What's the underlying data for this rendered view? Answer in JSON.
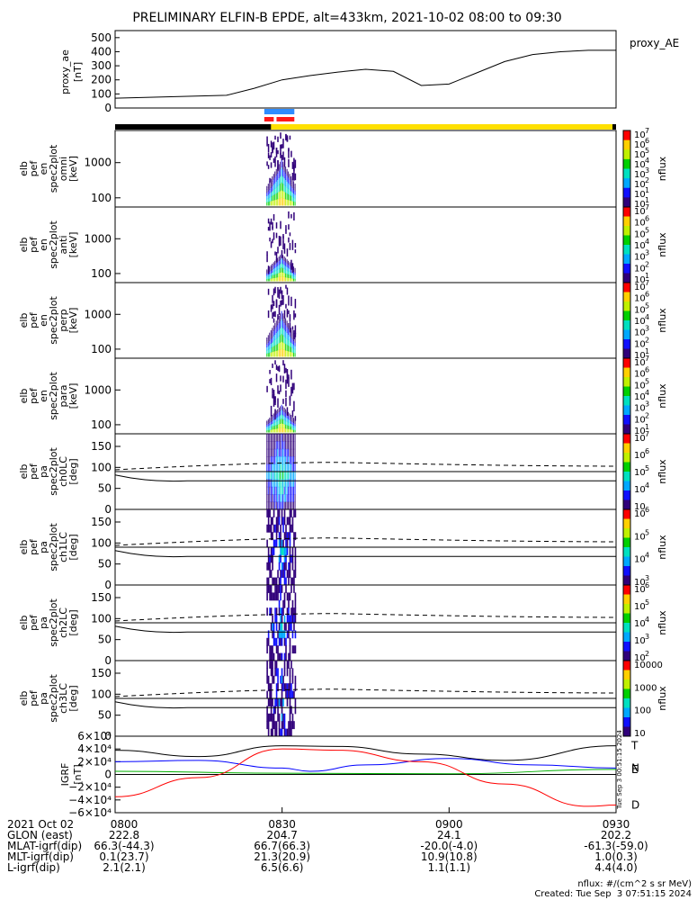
{
  "title": "PRELIMINARY ELFIN-B EPDE, alt=433km, 2021-10-02 08:00 to 09:30",
  "time_axis": {
    "start": "08:00",
    "end": "09:30",
    "ticks": [
      "0800",
      "0830",
      "0900",
      "0930"
    ]
  },
  "colors": {
    "phase_black": "#000000",
    "phase_yellow": "#ffe000",
    "phase_blue": "#2f8cff",
    "phase_red": "#ff1a1a",
    "mag_N": "#0000ff",
    "mag_E": "#00b000",
    "mag_D": "#ff0000",
    "mag_T": "#000000"
  },
  "chart_data": [
    {
      "type": "line",
      "name": "proxy_ae",
      "ylabel": "proxy_ae\n[nT]",
      "legend": "proxy_AE",
      "ylim": [
        0,
        550
      ],
      "yticks": [
        "500",
        "400",
        "300",
        "200",
        "100",
        "0"
      ],
      "x_min": [
        0,
        10,
        20,
        25,
        30,
        35,
        40,
        45,
        50,
        55,
        60,
        65,
        70,
        75,
        80,
        85,
        90
      ],
      "y": [
        70,
        80,
        90,
        140,
        200,
        230,
        255,
        275,
        260,
        160,
        170,
        250,
        330,
        380,
        400,
        410,
        410
      ]
    },
    {
      "type": "heatmap",
      "name": "elb_pef_en_spec2plot_omni",
      "ylabel": [
        "elb",
        "pef",
        "en",
        "spec2plot",
        "omni",
        "[keV]"
      ],
      "ylog": true,
      "yticks": [
        "1000",
        "100"
      ],
      "zlabel": "nflux",
      "zticks": [
        "10",
        "10",
        "10",
        "10",
        "10",
        "10",
        "10",
        "10"
      ],
      "zexp": [
        "7",
        "6",
        "5",
        "4",
        "3",
        "2",
        "1",
        "1"
      ],
      "active_window": [
        "08:27",
        "08:33"
      ]
    },
    {
      "type": "heatmap",
      "name": "elb_pef_en_spec2plot_anti",
      "ylabel": [
        "elb",
        "pef",
        "en",
        "spec2plot",
        "anti",
        "[keV]"
      ],
      "ylog": true,
      "yticks": [
        "1000",
        "100"
      ],
      "zlabel": "nflux",
      "zticks": [
        "10",
        "10",
        "10",
        "10",
        "10",
        "10",
        "10"
      ],
      "zexp": [
        "7",
        "6",
        "5",
        "4",
        "3",
        "2",
        "1"
      ],
      "active_window": [
        "08:27",
        "08:33"
      ]
    },
    {
      "type": "heatmap",
      "name": "elb_pef_en_spec2plot_perp",
      "ylabel": [
        "elb",
        "pef",
        "en",
        "spec2plot",
        "perp",
        "[keV]"
      ],
      "ylog": true,
      "yticks": [
        "1000",
        "100"
      ],
      "zlabel": "nflux",
      "zticks": [
        "10",
        "10",
        "10",
        "10",
        "10",
        "10",
        "10"
      ],
      "zexp": [
        "7",
        "6",
        "5",
        "4",
        "3",
        "2",
        "1"
      ],
      "active_window": [
        "08:27",
        "08:33"
      ]
    },
    {
      "type": "heatmap",
      "name": "elb_pef_en_spec2plot_para",
      "ylabel": [
        "elb",
        "pef",
        "en",
        "spec2plot",
        "para",
        "[keV]"
      ],
      "ylog": true,
      "yticks": [
        "1000",
        "100"
      ],
      "zlabel": "nflux",
      "zticks": [
        "10",
        "10",
        "10",
        "10",
        "10",
        "10",
        "10"
      ],
      "zexp": [
        "7",
        "6",
        "5",
        "4",
        "3",
        "2",
        "1"
      ],
      "active_window": [
        "08:27",
        "08:33"
      ]
    },
    {
      "type": "heatmap",
      "name": "elb_pef_pa_spec2plot_ch0LC",
      "ylabel": [
        "elb",
        "pef",
        "pa",
        "spec2plot",
        "ch0LC",
        "[deg]"
      ],
      "ylim": [
        0,
        180
      ],
      "yticks": [
        "150",
        "100",
        "50",
        "0"
      ],
      "zlabel": "nflux",
      "zticks": [
        "10",
        "10",
        "10",
        "10",
        "10"
      ],
      "zexp": [
        "7",
        "6",
        "5",
        "4",
        ""
      ],
      "active_window": [
        "08:27",
        "08:33"
      ]
    },
    {
      "type": "heatmap",
      "name": "elb_pef_pa_spec2plot_ch1LC",
      "ylabel": [
        "elb",
        "pef",
        "pa",
        "spec2plot",
        "ch1LC",
        "[deg]"
      ],
      "ylim": [
        0,
        180
      ],
      "yticks": [
        "150",
        "100",
        "50",
        "0"
      ],
      "zlabel": "nflux",
      "zticks": [
        "10",
        "10",
        "10",
        "10"
      ],
      "zexp": [
        "6",
        "5",
        "4",
        "3"
      ],
      "active_window": [
        "08:27",
        "08:33"
      ]
    },
    {
      "type": "heatmap",
      "name": "elb_pef_pa_spec2plot_ch2LC",
      "ylabel": [
        "elb",
        "pef",
        "pa",
        "spec2plot",
        "ch2LC",
        "[deg]"
      ],
      "ylim": [
        0,
        180
      ],
      "yticks": [
        "150",
        "100",
        "50",
        "0"
      ],
      "zlabel": "nflux",
      "zticks": [
        "10",
        "10",
        "10",
        "10",
        "10"
      ],
      "zexp": [
        "6",
        "5",
        "4",
        "3",
        "2"
      ],
      "active_window": [
        "08:27",
        "08:33"
      ]
    },
    {
      "type": "heatmap",
      "name": "elb_pef_pa_spec2plot_ch3LC",
      "ylabel": [
        "elb",
        "pef",
        "pa",
        "spec2plot",
        "ch3LC",
        "[deg]"
      ],
      "ylim": [
        0,
        180
      ],
      "yticks": [
        "150",
        "100",
        "50",
        "0"
      ],
      "zlabel": "nflux",
      "zticks": [
        "10000",
        "1000",
        "100",
        "10"
      ],
      "zexp": [
        "",
        "",
        "",
        ""
      ],
      "active_window": [
        "08:27",
        "08:33"
      ]
    },
    {
      "type": "line",
      "name": "IGRF",
      "ylabel": [
        "IGRF",
        "[nT]"
      ],
      "ylim": [
        -60000.0,
        60000.0
      ],
      "yticks": [
        "6×10⁴",
        "4×10⁴",
        "2×10⁴",
        "0",
        "−2×10⁴",
        "−4×10⁴",
        "−6×10⁴"
      ],
      "series": [
        {
          "name": "T",
          "x_min": [
            0,
            15,
            30,
            40,
            55,
            70,
            90
          ],
          "y": [
            38000,
            28000,
            45000,
            44000,
            32000,
            22000,
            45000
          ]
        },
        {
          "name": "N",
          "x_min": [
            0,
            15,
            30,
            35,
            45,
            60,
            75,
            90
          ],
          "y": [
            20000,
            22000,
            10000,
            5000,
            15000,
            25000,
            15000,
            10000
          ]
        },
        {
          "name": "E",
          "x_min": [
            0,
            30,
            60,
            90
          ],
          "y": [
            5000,
            2000,
            1000,
            8000
          ]
        },
        {
          "name": "D",
          "x_min": [
            0,
            15,
            30,
            40,
            55,
            70,
            85,
            90
          ],
          "y": [
            -35000,
            -5000,
            40000,
            38000,
            20000,
            -15000,
            -50000,
            -48000
          ]
        }
      ]
    }
  ],
  "orbit_table": {
    "rows": [
      {
        "label": "2021 Oct 02",
        "values": [
          "0800",
          "0830",
          "0900",
          "0930"
        ]
      },
      {
        "label": "GLON (east)",
        "values": [
          "222.8",
          "204.7",
          "24.1",
          "202.2"
        ]
      },
      {
        "label": "MLAT-igrf(dip)",
        "values": [
          "66.3(-44.3)",
          "66.7(66.3)",
          "-20.0(-4.0)",
          "-61.3(-59.0)"
        ]
      },
      {
        "label": "MLT-igrf(dip)",
        "values": [
          "0.1(23.7)",
          "21.3(20.9)",
          "10.9(10.8)",
          "1.0(0.3)"
        ]
      },
      {
        "label": "L-igrf(dip)",
        "values": [
          "2.1(2.1)",
          "6.5(6.6)",
          "1.1(1.1)",
          "4.4(4.0)"
        ]
      }
    ]
  },
  "footer": {
    "units": "nflux: #/(cm^2 s sr MeV)",
    "created": "Created: Tue Sep  3 07:51:15 2024",
    "sidebar_stamp": "Tue Sep  3 00:51:15 2024"
  }
}
